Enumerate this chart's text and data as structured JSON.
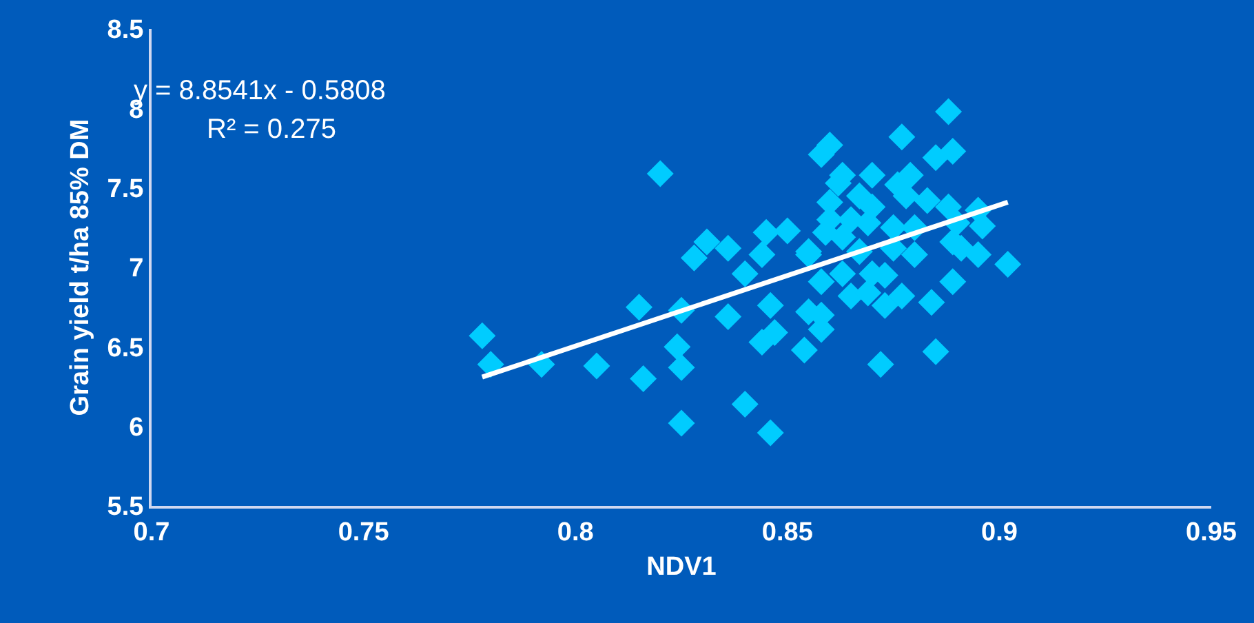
{
  "chart_data": {
    "type": "scatter",
    "xlabel": "NDV1",
    "ylabel": "Grain yield t/ha 85% DM",
    "xlim": [
      0.7,
      0.95
    ],
    "xticks": [
      0.7,
      0.75,
      0.8,
      0.85,
      0.9,
      0.95
    ],
    "ylim": [
      5.5,
      8.5
    ],
    "yticks": [
      5.5,
      6,
      6.5,
      7,
      7.5,
      8,
      8.5
    ],
    "grid": false,
    "marker": "diamond",
    "annotations": [
      "y = 8.8541x - 0.5808",
      "R² = 0.275"
    ],
    "series": [
      {
        "color": "#00ccff",
        "x": [
          0.778,
          0.78,
          0.792,
          0.805,
          0.816,
          0.815,
          0.82,
          0.824,
          0.825,
          0.825,
          0.825,
          0.828,
          0.831,
          0.836,
          0.84,
          0.836,
          0.84,
          0.846,
          0.845,
          0.85,
          0.844,
          0.855,
          0.846,
          0.844,
          0.847,
          0.854,
          0.855,
          0.858,
          0.858,
          0.858,
          0.858,
          0.888,
          0.877,
          0.86,
          0.885,
          0.889,
          0.863,
          0.87,
          0.862,
          0.879,
          0.876,
          0.878,
          0.883,
          0.867,
          0.86,
          0.87,
          0.86,
          0.865,
          0.869,
          0.859,
          0.863,
          0.875,
          0.888,
          0.895,
          0.896,
          0.89,
          0.88,
          0.889,
          0.895,
          0.891,
          0.88,
          0.875,
          0.902,
          0.855,
          0.867,
          0.863,
          0.87,
          0.873,
          0.889,
          0.877,
          0.865,
          0.869,
          0.873,
          0.884,
          0.885,
          0.872
        ],
        "values": [
          6.57,
          6.39,
          6.39,
          6.38,
          6.3,
          6.75,
          7.59,
          6.5,
          6.37,
          6.73,
          6.02,
          7.06,
          7.16,
          7.12,
          6.96,
          6.69,
          6.14,
          5.96,
          7.22,
          7.23,
          7.08,
          7.08,
          6.76,
          6.53,
          6.59,
          6.48,
          6.72,
          6.7,
          6.91,
          6.61,
          7.71,
          7.98,
          7.82,
          7.77,
          7.69,
          7.73,
          7.58,
          7.58,
          7.53,
          7.58,
          7.52,
          7.45,
          7.42,
          7.45,
          7.41,
          7.38,
          7.3,
          7.3,
          7.28,
          7.22,
          7.19,
          7.25,
          7.38,
          7.36,
          7.26,
          7.28,
          7.25,
          7.16,
          7.08,
          7.12,
          7.08,
          7.12,
          7.02,
          7.1,
          7.1,
          6.96,
          6.96,
          6.95,
          6.91,
          6.82,
          6.82,
          6.84,
          6.76,
          6.78,
          6.47,
          6.39
        ]
      },
      {
        "type": "line",
        "color": "#ffffff",
        "marker": "none",
        "x": [
          0.778,
          0.902
        ],
        "values": [
          6.31,
          7.41
        ]
      }
    ]
  }
}
